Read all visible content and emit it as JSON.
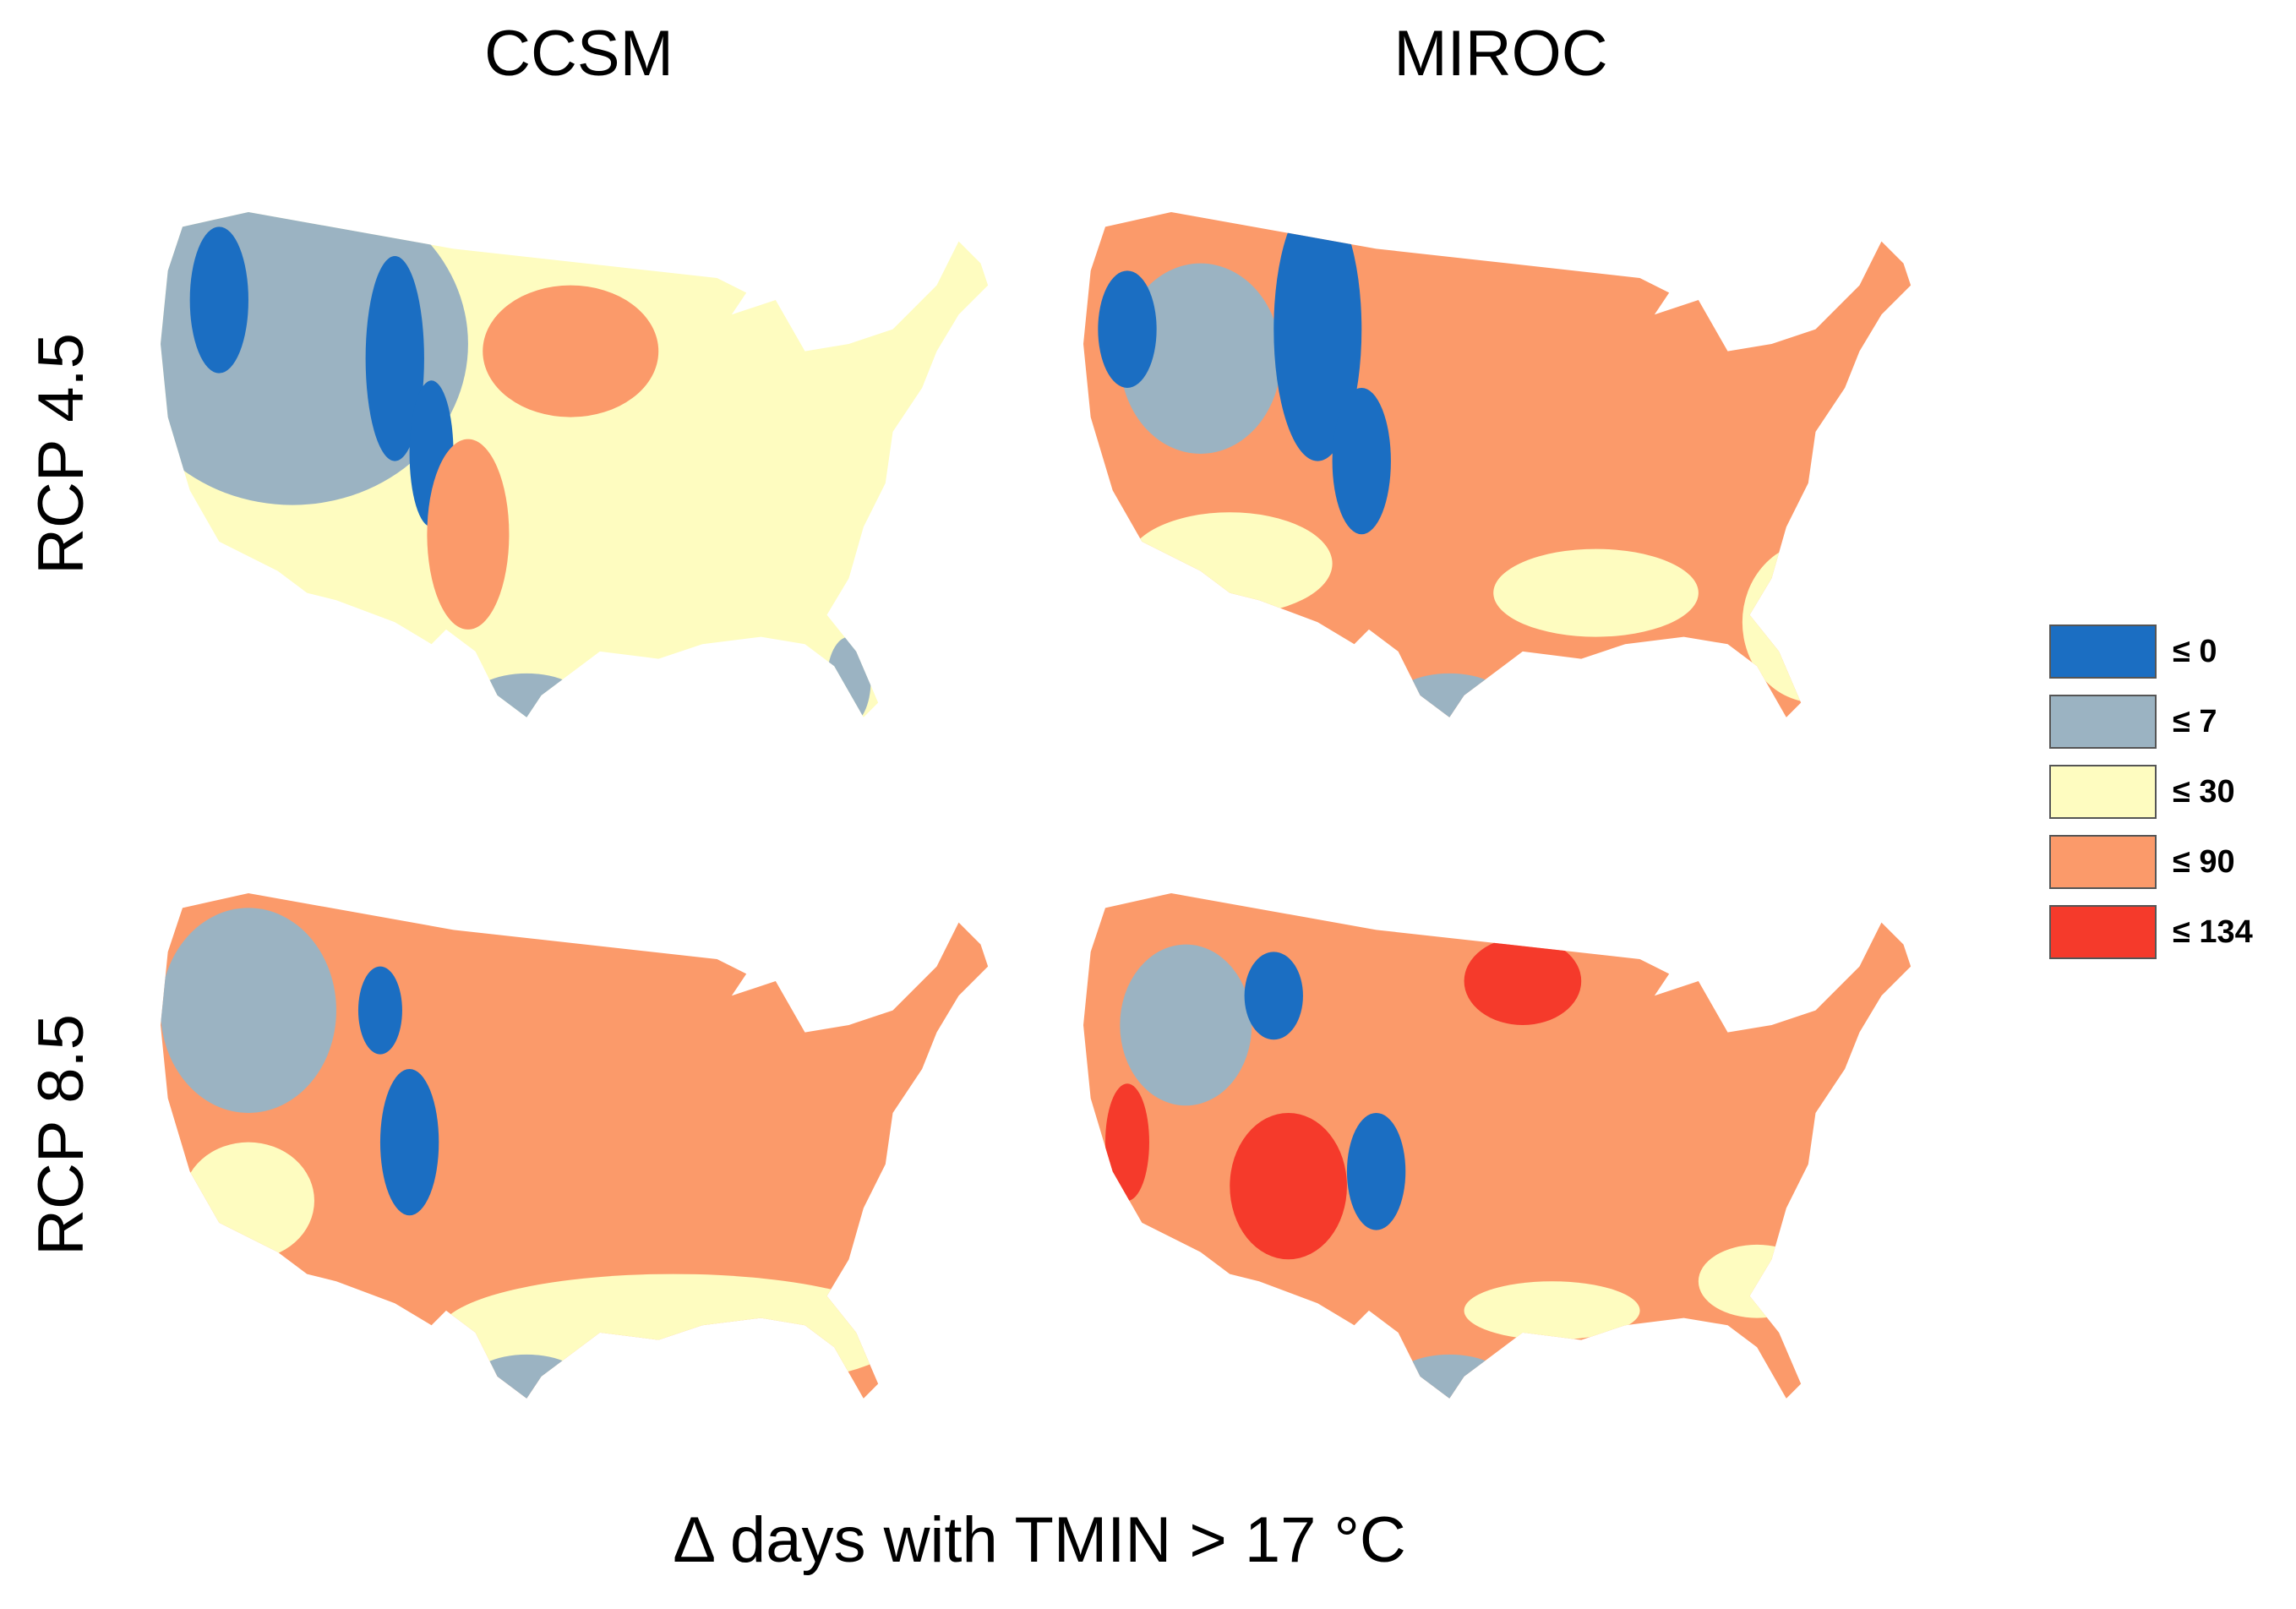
{
  "columns": [
    "CCSM",
    "MIROC"
  ],
  "rows": [
    "RCP 4.5",
    "RCP 8.5"
  ],
  "legend": [
    {
      "label": "≤ 0",
      "color": "#1b6ec2"
    },
    {
      "label": "≤ 7",
      "color": "#9bb3c2"
    },
    {
      "label": "≤ 30",
      "color": "#fefcc0"
    },
    {
      "label": "≤ 90",
      "color": "#fb9a6a"
    },
    {
      "label": "≤ 134",
      "color": "#f53a2b"
    }
  ],
  "caption": "Δ days with TMIN > 17 °C"
}
